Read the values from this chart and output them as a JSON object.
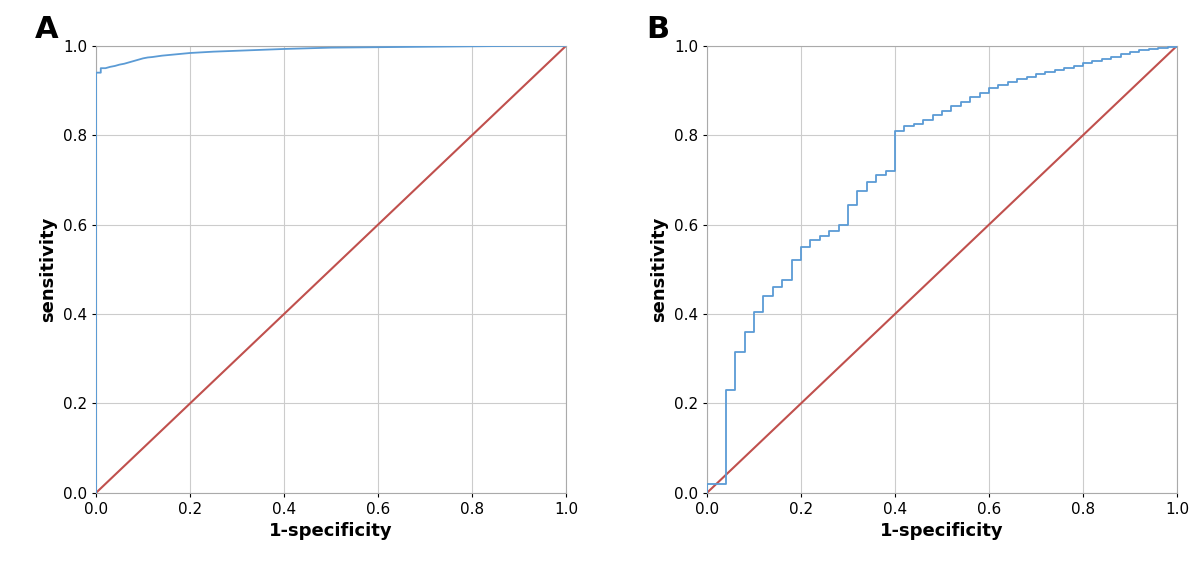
{
  "panel_A_label": "A",
  "panel_B_label": "B",
  "xlabel": "1-specificity",
  "ylabel": "sensitivity",
  "roc_color": "#5b9bd5",
  "diag_color": "#c0504d",
  "bg_color": "#ffffff",
  "grid_color": "#cccccc",
  "roc_linewidth": 1.3,
  "diag_linewidth": 1.5,
  "panel_A_fpr": [
    0.0,
    0.0,
    0.0,
    0.0,
    0.0,
    0.0,
    0.01,
    0.01,
    0.02,
    0.03,
    0.04,
    0.05,
    0.06,
    0.07,
    0.08,
    0.09,
    0.1,
    0.11,
    0.12,
    0.14,
    0.16,
    0.18,
    0.2,
    0.25,
    0.3,
    0.35,
    0.4,
    0.5,
    0.6,
    0.7,
    0.8,
    0.9,
    1.0
  ],
  "panel_A_tpr": [
    0.0,
    0.6,
    0.7,
    0.72,
    0.8,
    0.94,
    0.94,
    0.95,
    0.95,
    0.953,
    0.955,
    0.958,
    0.96,
    0.963,
    0.966,
    0.969,
    0.972,
    0.974,
    0.975,
    0.978,
    0.98,
    0.982,
    0.984,
    0.987,
    0.989,
    0.991,
    0.993,
    0.996,
    0.997,
    0.998,
    0.999,
    1.0,
    1.0
  ],
  "panel_B_fpr": [
    0.0,
    0.0,
    0.04,
    0.04,
    0.06,
    0.06,
    0.08,
    0.08,
    0.1,
    0.1,
    0.12,
    0.12,
    0.14,
    0.14,
    0.16,
    0.16,
    0.18,
    0.18,
    0.2,
    0.2,
    0.22,
    0.22,
    0.24,
    0.24,
    0.26,
    0.26,
    0.28,
    0.28,
    0.3,
    0.3,
    0.32,
    0.32,
    0.34,
    0.34,
    0.36,
    0.36,
    0.38,
    0.38,
    0.4,
    0.4,
    0.42,
    0.42,
    0.44,
    0.44,
    0.46,
    0.46,
    0.48,
    0.48,
    0.5,
    0.5,
    0.52,
    0.52,
    0.54,
    0.54,
    0.56,
    0.56,
    0.58,
    0.58,
    0.6,
    0.6,
    0.62,
    0.62,
    0.64,
    0.64,
    0.66,
    0.66,
    0.68,
    0.68,
    0.7,
    0.7,
    0.72,
    0.72,
    0.74,
    0.74,
    0.76,
    0.76,
    0.78,
    0.78,
    0.8,
    0.8,
    0.82,
    0.82,
    0.84,
    0.84,
    0.86,
    0.86,
    0.88,
    0.88,
    0.9,
    0.9,
    0.92,
    0.92,
    0.94,
    0.94,
    0.96,
    0.96,
    0.98,
    0.98,
    1.0,
    1.0
  ],
  "panel_B_tpr": [
    0.0,
    0.02,
    0.02,
    0.23,
    0.23,
    0.315,
    0.315,
    0.36,
    0.36,
    0.405,
    0.405,
    0.44,
    0.44,
    0.46,
    0.46,
    0.475,
    0.475,
    0.52,
    0.52,
    0.55,
    0.55,
    0.565,
    0.565,
    0.575,
    0.575,
    0.585,
    0.585,
    0.6,
    0.6,
    0.645,
    0.645,
    0.675,
    0.675,
    0.695,
    0.695,
    0.71,
    0.71,
    0.72,
    0.72,
    0.81,
    0.81,
    0.82,
    0.82,
    0.825,
    0.825,
    0.835,
    0.835,
    0.845,
    0.845,
    0.855,
    0.855,
    0.865,
    0.865,
    0.875,
    0.875,
    0.885,
    0.885,
    0.895,
    0.895,
    0.905,
    0.905,
    0.912,
    0.912,
    0.918,
    0.918,
    0.925,
    0.925,
    0.93,
    0.93,
    0.936,
    0.936,
    0.941,
    0.941,
    0.946,
    0.946,
    0.951,
    0.951,
    0.956,
    0.956,
    0.961,
    0.961,
    0.966,
    0.966,
    0.971,
    0.971,
    0.976,
    0.976,
    0.981,
    0.981,
    0.986,
    0.986,
    0.99,
    0.99,
    0.993,
    0.993,
    0.996,
    0.996,
    0.998,
    0.998,
    1.0
  ],
  "tick_fontsize": 11,
  "label_fontsize": 13,
  "panel_label_fontsize": 22,
  "xlim": [
    0.0,
    1.0
  ],
  "ylim": [
    0.0,
    1.0
  ],
  "xticks": [
    0.0,
    0.2,
    0.4,
    0.6,
    0.8,
    1.0
  ],
  "yticks": [
    0.0,
    0.2,
    0.4,
    0.6,
    0.8,
    1.0
  ]
}
